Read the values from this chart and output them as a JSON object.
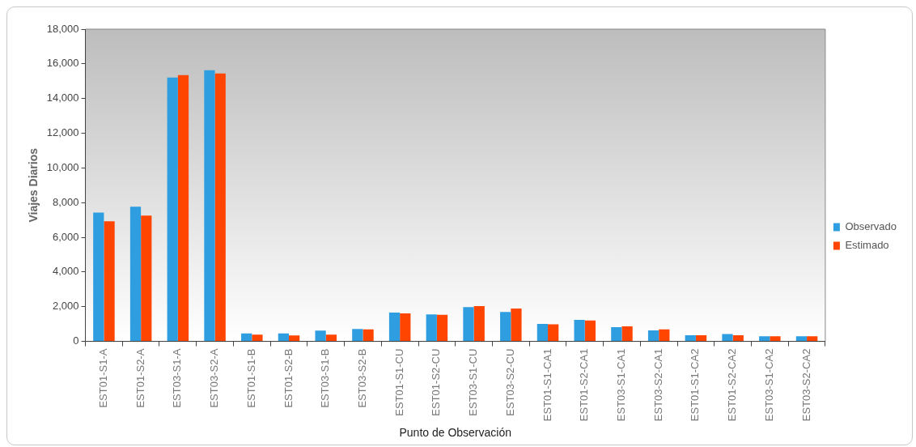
{
  "chart_data": {
    "type": "bar",
    "xlabel": "Punto de Observación",
    "ylabel": "Viajes Diarios",
    "categories": [
      "EST01-S1-A",
      "EST01-S2-A",
      "EST03-S1-A",
      "EST03-S2-A",
      "EST01-S1-B",
      "EST01-S2-B",
      "EST03-S1-B",
      "EST03-S2-B",
      "EST01-S1-CU",
      "EST01-S2-CU",
      "EST03-S1-CU",
      "EST03-S2-CU",
      "EST01-S1-CA1",
      "EST01-S2-CA1",
      "EST03-S1-CA1",
      "EST03-S2-CA1",
      "EST01-S1-CA2",
      "EST01-S2-CA2",
      "EST03-S1-CA2",
      "EST03-S2-CA2"
    ],
    "series": [
      {
        "name": "Observado",
        "color": "#2f9ee0",
        "values": [
          7430,
          7770,
          15210,
          15630,
          460,
          460,
          620,
          720,
          1660,
          1560,
          1980,
          1700,
          1010,
          1240,
          820,
          640,
          350,
          420,
          300,
          300
        ]
      },
      {
        "name": "Estimado",
        "color": "#ff4500",
        "values": [
          6930,
          7250,
          15350,
          15450,
          390,
          340,
          390,
          690,
          1610,
          1530,
          2030,
          1900,
          980,
          1210,
          870,
          690,
          350,
          350,
          300,
          300
        ]
      }
    ],
    "ylim": [
      0,
      18000
    ],
    "yticks": [
      {
        "value": 0,
        "label": "0"
      },
      {
        "value": 2000,
        "label": "2,000"
      },
      {
        "value": 4000,
        "label": "4,000"
      },
      {
        "value": 6000,
        "label": "6,000"
      },
      {
        "value": 8000,
        "label": "8,000"
      },
      {
        "value": 10000,
        "label": "10,000"
      },
      {
        "value": 12000,
        "label": "12,000"
      },
      {
        "value": 14000,
        "label": "14,000"
      },
      {
        "value": 16000,
        "label": "16,000"
      },
      {
        "value": 18000,
        "label": "18,000"
      }
    ],
    "grid": false,
    "legend": "right"
  }
}
